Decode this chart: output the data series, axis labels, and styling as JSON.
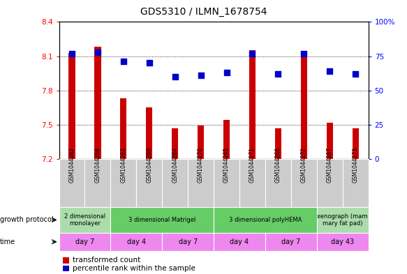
{
  "title": "GDS5310 / ILMN_1678754",
  "samples": [
    "GSM1044262",
    "GSM1044268",
    "GSM1044263",
    "GSM1044269",
    "GSM1044264",
    "GSM1044270",
    "GSM1044265",
    "GSM1044271",
    "GSM1044266",
    "GSM1044272",
    "GSM1044267",
    "GSM1044273"
  ],
  "transformed_count": [
    8.13,
    8.18,
    7.73,
    7.65,
    7.47,
    7.49,
    7.54,
    8.15,
    7.47,
    8.11,
    7.52,
    7.47
  ],
  "percentile_rank": [
    77,
    78,
    71,
    70,
    60,
    61,
    63,
    77,
    62,
    77,
    64,
    62
  ],
  "ylim_left": [
    7.2,
    8.4
  ],
  "ylim_right": [
    0,
    100
  ],
  "yticks_left": [
    7.2,
    7.5,
    7.8,
    8.1,
    8.4
  ],
  "yticks_right": [
    0,
    25,
    50,
    75,
    100
  ],
  "ytick_labels_left": [
    "7.2",
    "7.5",
    "7.8",
    "8.1",
    "8.4"
  ],
  "ytick_labels_right": [
    "0",
    "25",
    "50",
    "75",
    "100%"
  ],
  "bar_color": "#cc0000",
  "dot_color": "#0000cc",
  "growth_protocol_groups": [
    {
      "label": "2 dimensional\nmonolayer",
      "start": 0,
      "end": 2,
      "color": "#aaddaa"
    },
    {
      "label": "3 dimensional Matrigel",
      "start": 2,
      "end": 6,
      "color": "#66cc66"
    },
    {
      "label": "3 dimensional polyHEMA",
      "start": 6,
      "end": 10,
      "color": "#66cc66"
    },
    {
      "label": "xenograph (mam\nmary fat pad)",
      "start": 10,
      "end": 12,
      "color": "#aaddaa"
    }
  ],
  "time_groups": [
    {
      "label": "day 7",
      "start": 0,
      "end": 2
    },
    {
      "label": "day 4",
      "start": 2,
      "end": 4
    },
    {
      "label": "day 7",
      "start": 4,
      "end": 6
    },
    {
      "label": "day 4",
      "start": 6,
      "end": 8
    },
    {
      "label": "day 7",
      "start": 8,
      "end": 10
    },
    {
      "label": "day 43",
      "start": 10,
      "end": 12
    }
  ],
  "time_color": "#ee88ee",
  "sample_bg_color": "#cccccc",
  "xlabel_left": "transformed count",
  "xlabel_right": "percentile rank within the sample",
  "bar_width": 0.25,
  "dot_size": 35,
  "background_color": "#ffffff"
}
